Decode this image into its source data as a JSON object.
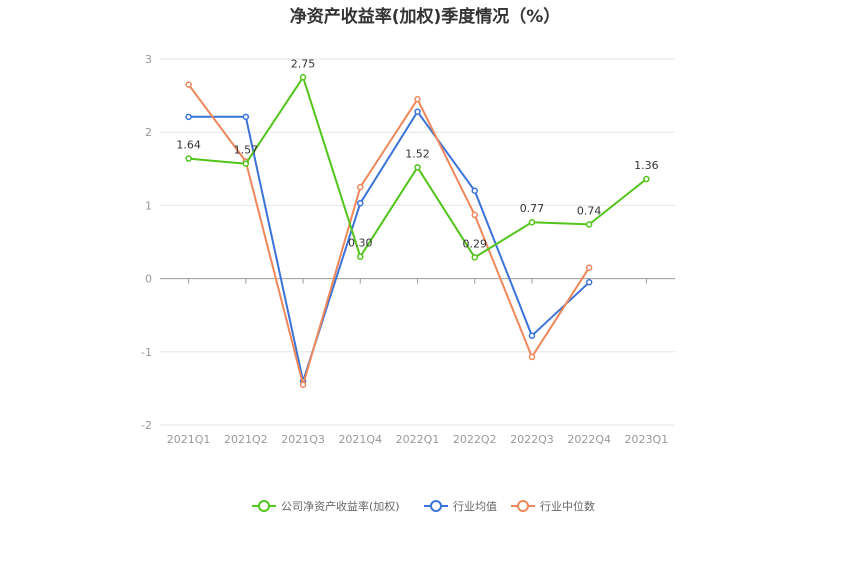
{
  "chart_data": {
    "type": "line",
    "title": "净资产收益率(加权)季度情况（%）",
    "categories": [
      "2021Q1",
      "2021Q2",
      "2021Q3",
      "2021Q4",
      "2022Q1",
      "2022Q2",
      "2022Q3",
      "2022Q4",
      "2023Q1"
    ],
    "ylim": [
      -2,
      3
    ],
    "yticks": [
      3,
      2,
      1,
      0,
      -1,
      -2
    ],
    "grid": true,
    "legend_position": "bottom",
    "series": [
      {
        "name": "公司净资产收益率(加权)",
        "color": "#52c41a",
        "values": [
          1.64,
          1.57,
          2.75,
          0.3,
          1.52,
          0.29,
          0.77,
          0.74,
          1.36
        ],
        "labels": [
          "1.64",
          "1.57",
          "2.75",
          "0.30",
          "1.52",
          "0.29",
          "0.77",
          "0.74",
          "1.36"
        ]
      },
      {
        "name": "行业均值",
        "color": "#3b73d9",
        "values": [
          2.21,
          2.21,
          -1.4,
          1.03,
          2.28,
          1.2,
          -0.78,
          -0.05,
          null
        ]
      },
      {
        "name": "行业中位数",
        "color": "#f0875a",
        "values": [
          2.65,
          1.6,
          -1.45,
          1.25,
          2.45,
          0.87,
          -1.07,
          0.15,
          null
        ]
      }
    ]
  }
}
